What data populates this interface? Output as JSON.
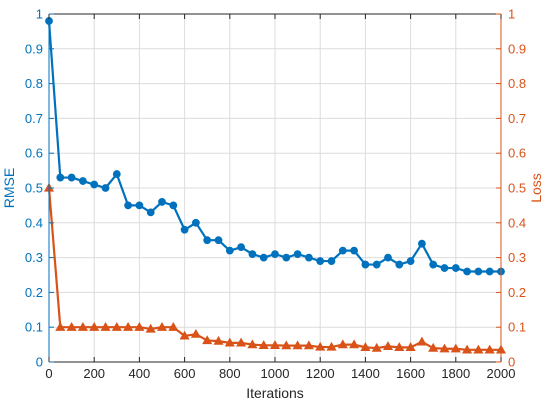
{
  "chart_data": {
    "type": "line",
    "xlabel": "Iterations",
    "ylabel_left": "RMSE",
    "ylabel_right": "Loss",
    "xlim": [
      0,
      2000
    ],
    "ylim_left": [
      0,
      1
    ],
    "ylim_right": [
      0,
      1
    ],
    "x_ticks": [
      0,
      200,
      400,
      600,
      800,
      1000,
      1200,
      1400,
      1600,
      1800,
      2000
    ],
    "x_tick_labels": [
      "0",
      "200",
      "400",
      "600",
      "800",
      "1000",
      "1200",
      "1400",
      "1600",
      "1800",
      "2000"
    ],
    "y_ticks_left": [
      0,
      0.1,
      0.2,
      0.3,
      0.4,
      0.5,
      0.6,
      0.7,
      0.8,
      0.9,
      1
    ],
    "y_tick_labels_left": [
      "0",
      "0.1",
      "0.2",
      "0.3",
      "0.4",
      "0.5",
      "0.6",
      "0.7",
      "0.8",
      "0.9",
      "1"
    ],
    "y_ticks_right": [
      0,
      0.1,
      0.2,
      0.3,
      0.4,
      0.5,
      0.6,
      0.7,
      0.8,
      0.9,
      1
    ],
    "y_tick_labels_right": [
      "0",
      "0.1",
      "0.2",
      "0.3",
      "0.4",
      "0.5",
      "0.6",
      "0.7",
      "0.8",
      "0.9",
      "1"
    ],
    "grid": true,
    "colors": {
      "left_axis": "#0072BD",
      "right_axis": "#D95319",
      "grid": "#dcdcdc",
      "frame": "#262626"
    },
    "series": [
      {
        "axis": "left",
        "marker": "circle",
        "color": "#0072BD",
        "x": [
          0,
          50,
          100,
          150,
          200,
          250,
          300,
          350,
          400,
          450,
          500,
          550,
          600,
          650,
          700,
          750,
          800,
          850,
          900,
          950,
          1000,
          1050,
          1100,
          1150,
          1200,
          1250,
          1300,
          1350,
          1400,
          1450,
          1500,
          1550,
          1600,
          1650,
          1700,
          1750,
          1800,
          1850,
          1900,
          1950,
          2000
        ],
        "y": [
          0.98,
          0.53,
          0.53,
          0.52,
          0.51,
          0.5,
          0.54,
          0.45,
          0.45,
          0.43,
          0.46,
          0.45,
          0.38,
          0.4,
          0.35,
          0.35,
          0.32,
          0.33,
          0.31,
          0.3,
          0.31,
          0.3,
          0.31,
          0.3,
          0.29,
          0.29,
          0.32,
          0.32,
          0.28,
          0.28,
          0.3,
          0.28,
          0.29,
          0.34,
          0.28,
          0.27,
          0.27,
          0.26,
          0.26,
          0.26,
          0.26
        ]
      },
      {
        "axis": "right",
        "marker": "triangle",
        "color": "#D95319",
        "x": [
          0,
          50,
          100,
          150,
          200,
          250,
          300,
          350,
          400,
          450,
          500,
          550,
          600,
          650,
          700,
          750,
          800,
          850,
          900,
          950,
          1000,
          1050,
          1100,
          1150,
          1200,
          1250,
          1300,
          1350,
          1400,
          1450,
          1500,
          1550,
          1600,
          1650,
          1700,
          1750,
          1800,
          1850,
          1900,
          1950,
          2000
        ],
        "y": [
          0.5,
          0.1,
          0.1,
          0.1,
          0.1,
          0.1,
          0.1,
          0.1,
          0.1,
          0.095,
          0.1,
          0.1,
          0.075,
          0.08,
          0.062,
          0.06,
          0.055,
          0.055,
          0.05,
          0.048,
          0.048,
          0.047,
          0.047,
          0.047,
          0.043,
          0.043,
          0.05,
          0.05,
          0.042,
          0.04,
          0.045,
          0.042,
          0.042,
          0.058,
          0.04,
          0.038,
          0.038,
          0.035,
          0.035,
          0.035,
          0.035
        ]
      }
    ]
  }
}
